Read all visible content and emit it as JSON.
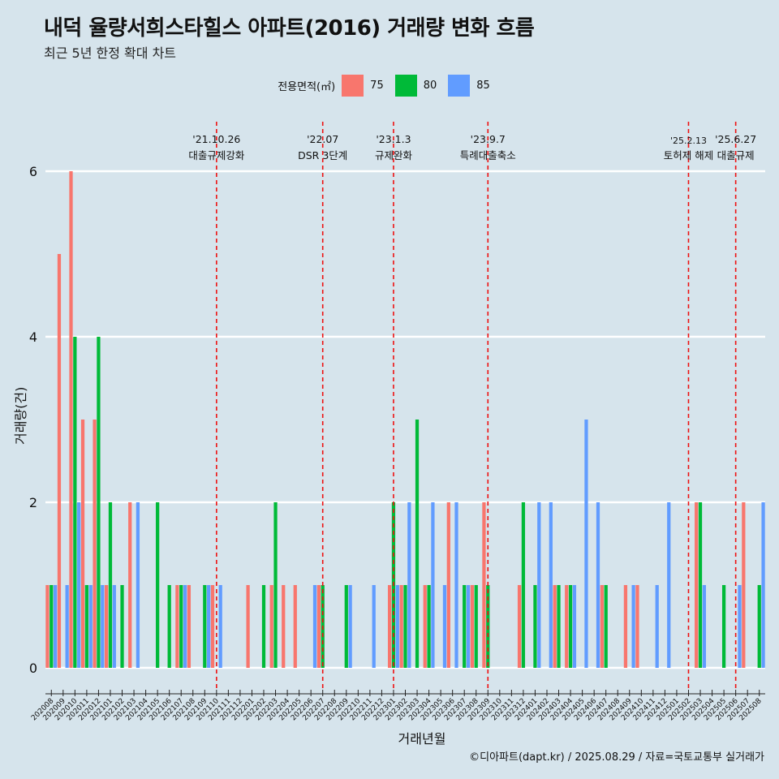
{
  "title": "내덕 율량서희스타힐스 아파트(2016) 거래량 변화 흐름",
  "subtitle": "최근 5년 한정 확대 차트",
  "caption": "©디아파트(dapt.kr) / 2025.08.29 / 자료=국토교통부 실거래가",
  "legend": {
    "title": "전용면적(㎡)",
    "items": [
      {
        "label": "75",
        "color": "#f8766d"
      },
      {
        "label": "80",
        "color": "#00ba38"
      },
      {
        "label": "85",
        "color": "#619cff"
      }
    ]
  },
  "chart_data": {
    "type": "bar",
    "xlabel": "거래년월",
    "ylabel": "거래량(건)",
    "ylim": [
      0,
      6.5
    ],
    "yticks": [
      0,
      2,
      4,
      6
    ],
    "grid": true,
    "legend_position": "top",
    "categories": [
      "202008",
      "202009",
      "202010",
      "202011",
      "202012",
      "202101",
      "202102",
      "202103",
      "202104",
      "202105",
      "202106",
      "202107",
      "202108",
      "202109",
      "202110",
      "202111",
      "202112",
      "202201",
      "202202",
      "202203",
      "202204",
      "202205",
      "202206",
      "202207",
      "202208",
      "202209",
      "202210",
      "202211",
      "202212",
      "202301",
      "202302",
      "202303",
      "202304",
      "202305",
      "202306",
      "202307",
      "202308",
      "202309",
      "202310",
      "202311",
      "202312",
      "202401",
      "202402",
      "202403",
      "202404",
      "202405",
      "202406",
      "202407",
      "202408",
      "202409",
      "202410",
      "202411",
      "202412",
      "202501",
      "202502",
      "202503",
      "202504",
      "202505",
      "202506",
      "202507",
      "202508"
    ],
    "series": [
      {
        "name": "75",
        "color": "#f8766d",
        "values": [
          1,
          5,
          6,
          3,
          3,
          1,
          0,
          2,
          0,
          0,
          0,
          1,
          1,
          0,
          1,
          0,
          0,
          1,
          0,
          1,
          1,
          1,
          0,
          1,
          0,
          0,
          0,
          0,
          0,
          1,
          1,
          0,
          1,
          0,
          2,
          0,
          1,
          2,
          0,
          0,
          1,
          0,
          0,
          1,
          1,
          0,
          0,
          1,
          0,
          1,
          1,
          0,
          0,
          0,
          0,
          2,
          0,
          0,
          0,
          2,
          0
        ]
      },
      {
        "name": "80",
        "color": "#00ba38",
        "values": [
          1,
          0,
          4,
          1,
          4,
          2,
          1,
          0,
          0,
          2,
          1,
          1,
          0,
          1,
          0,
          0,
          0,
          0,
          1,
          2,
          0,
          0,
          0,
          1,
          0,
          1,
          0,
          0,
          0,
          2,
          1,
          3,
          1,
          0,
          0,
          1,
          1,
          1,
          0,
          0,
          2,
          1,
          0,
          1,
          1,
          0,
          0,
          1,
          0,
          0,
          0,
          0,
          0,
          0,
          0,
          2,
          0,
          1,
          0,
          0,
          1
        ]
      },
      {
        "name": "85",
        "color": "#619cff",
        "values": [
          1,
          1,
          2,
          1,
          1,
          1,
          0,
          2,
          0,
          0,
          0,
          1,
          0,
          1,
          1,
          0,
          0,
          0,
          0,
          0,
          0,
          0,
          1,
          0,
          0,
          1,
          0,
          1,
          0,
          1,
          2,
          0,
          2,
          1,
          2,
          1,
          0,
          0,
          0,
          0,
          0,
          2,
          2,
          0,
          1,
          3,
          2,
          0,
          0,
          1,
          0,
          1,
          2,
          0,
          0,
          1,
          0,
          0,
          1,
          0,
          2
        ]
      }
    ],
    "events": [
      {
        "date": "'21.10.26",
        "label": "대출규제강화",
        "month": "202110"
      },
      {
        "date": "'22.07",
        "label": "DSR 3단계",
        "month": "202207"
      },
      {
        "date": "'23.1.3",
        "label": "규제완화",
        "month": "202301"
      },
      {
        "date": "'23.9.7",
        "label": "특례대출축소",
        "month": "202309"
      },
      {
        "date": "'25.2.13",
        "label": "토허제 해제",
        "month": "202502"
      },
      {
        "date": "'25.6.27",
        "label": "대출규제",
        "month": "202506"
      }
    ]
  }
}
